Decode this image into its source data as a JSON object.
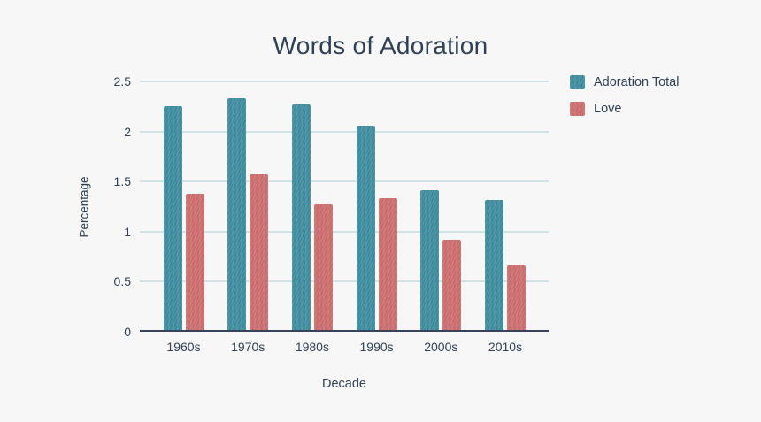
{
  "chart_data": {
    "type": "bar",
    "title": "Words of Adoration",
    "xlabel": "Decade",
    "ylabel": "Percentage",
    "categories": [
      "1960s",
      "1970s",
      "1980s",
      "1990s",
      "2000s",
      "2010s"
    ],
    "series": [
      {
        "name": "Adoration Total",
        "color": "#3b8da0",
        "values": [
          2.25,
          2.33,
          2.27,
          2.06,
          1.41,
          1.32
        ]
      },
      {
        "name": "Love",
        "color": "#d06c6d",
        "values": [
          1.38,
          1.57,
          1.27,
          1.33,
          0.92,
          0.66
        ]
      }
    ],
    "ylim": [
      0,
      2.5
    ],
    "yticks": [
      0,
      0.5,
      1,
      1.5,
      2,
      2.5
    ],
    "ytick_labels": [
      "0",
      "0.5",
      "1",
      "1.5",
      "2",
      "2.5"
    ],
    "grid": true,
    "legend_position": "top-right",
    "colors": {
      "background": "#f7f7f7",
      "text": "#2e4156",
      "gridline": "#cde3e5",
      "axis": "#39425c"
    }
  }
}
